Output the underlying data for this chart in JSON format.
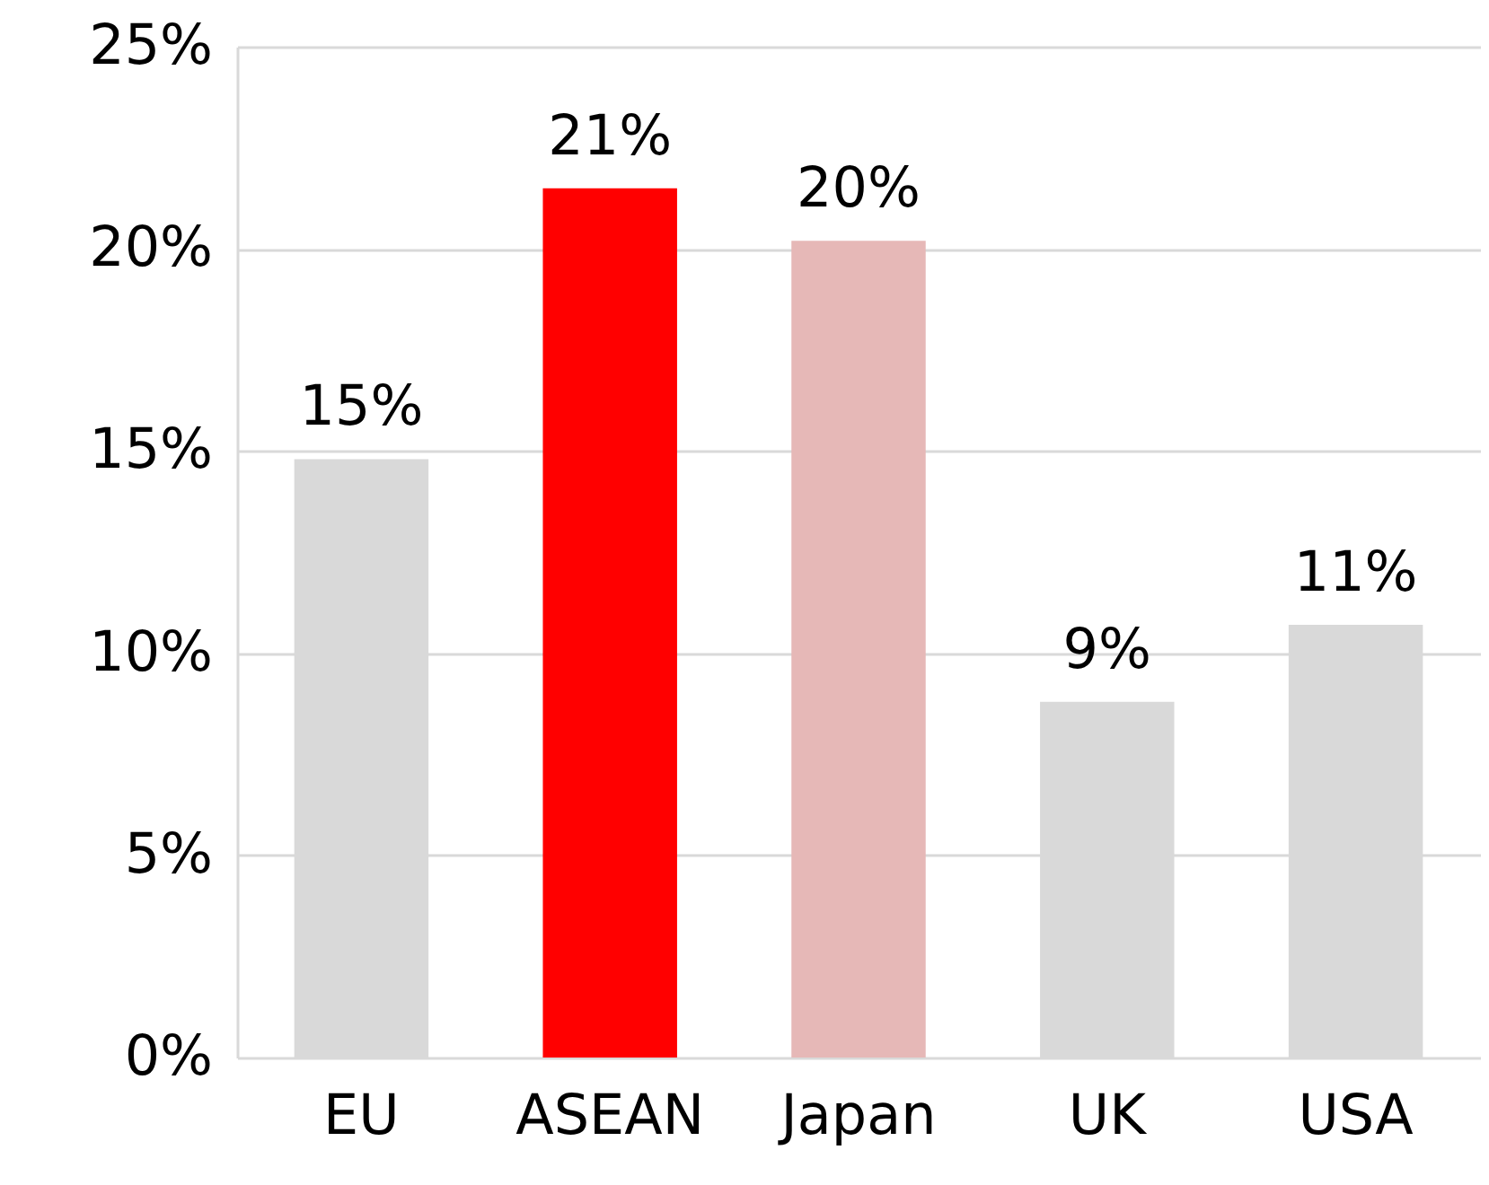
{
  "chart_data": {
    "type": "bar",
    "categories": [
      "EU",
      "ASEAN",
      "Japan",
      "UK",
      "USA"
    ],
    "values": [
      14.8,
      21.5,
      20.2,
      8.8,
      10.7
    ],
    "value_labels": [
      "15%",
      "21%",
      "20%",
      "9%",
      "11%"
    ],
    "colors": [
      "#d9d9d9",
      "#ff0000",
      "#e6b8b7",
      "#d9d9d9",
      "#d9d9d9"
    ],
    "ylim": [
      0,
      25
    ],
    "yticks": [
      {
        "value": 0,
        "label": "0%"
      },
      {
        "value": 5,
        "label": "5%"
      },
      {
        "value": 10,
        "label": "10%"
      },
      {
        "value": 15,
        "label": "15%"
      },
      {
        "value": 20,
        "label": "20%"
      },
      {
        "value": 25,
        "label": "25%"
      }
    ],
    "grid": "y",
    "legend": false
  }
}
